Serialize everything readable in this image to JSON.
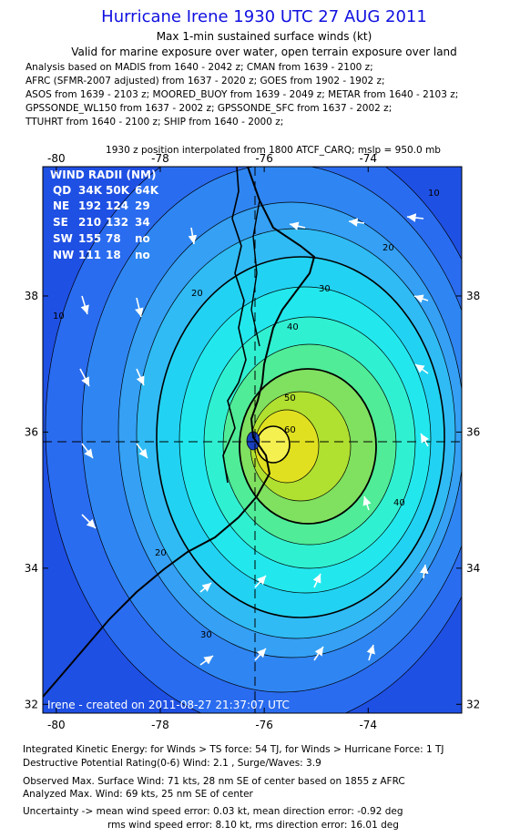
{
  "header": {
    "title": "Hurricane Irene 1930 UTC 27 AUG 2011",
    "subtitle": "Max 1-min sustained surface winds (kt)",
    "valid": "Valid for marine exposure over water, open terrain exposure over land",
    "analysis_lines": [
      "Analysis based on MADIS from 1640 - 2042 z; CMAN from 1639 - 2100 z;",
      "AFRC (SFMR-2007 adjusted) from 1637 - 2020 z; GOES from 1902 - 1902 z;",
      "ASOS from 1639 - 2103 z; MOORED_BUOY from 1639 - 2049 z; METAR from 1640 - 2103 z;",
      "GPSSONDE_WL150 from 1637 - 2002 z; GPSSONDE_SFC from 1637 - 2002 z;",
      "TTUHRT from 1640 - 2100 z; SHIP from 1640 - 2000 z;"
    ],
    "position_note": "1930 z position interpolated from 1800 ATCF_CARQ; mslp = 950.0 mb"
  },
  "map": {
    "xlim": [
      -80.26,
      -72.2
    ],
    "ylim": [
      31.87,
      39.9
    ],
    "xticks": [
      -80,
      -78,
      -76,
      -74
    ],
    "yticks": [
      32,
      34,
      36,
      38
    ],
    "contour_labels": [
      "10",
      "20",
      "30",
      "40",
      "50",
      "60",
      "10",
      "20",
      "30",
      "40",
      "20"
    ],
    "wind_radii": {
      "title": "WIND RADII (NM)",
      "header": [
        "QD",
        "34K",
        "50K",
        "64K"
      ],
      "rows": [
        [
          "NE",
          "192",
          "124",
          "29"
        ],
        [
          "SE",
          "210",
          "132",
          "34"
        ],
        [
          "SW",
          "155",
          "78",
          "no"
        ],
        [
          "NW",
          "111",
          "18",
          "no"
        ]
      ]
    },
    "credit": "Irene - created on 2011-08-27 21:37:07 UTC"
  },
  "footer": {
    "lines": [
      "Integrated Kinetic Energy: for Winds > TS force: 54 TJ, for Winds > Hurricane Force: 1 TJ",
      "Destructive Potential Rating(0-6) Wind: 2.1 , Surge/Waves: 3.9",
      "Observed Max. Surface Wind: 71 kts, 28 nm SE of center based on 1855 z AFRC",
      "Analyzed Max. Wind: 69 kts, 25 nm SE of center",
      "Uncertainty -> mean wind speed error: 0.03 kt,   mean direction error:  -0.92 deg",
      "rms wind speed error: 8.10 kt,   rms direction error: 16.01 deg"
    ]
  }
}
